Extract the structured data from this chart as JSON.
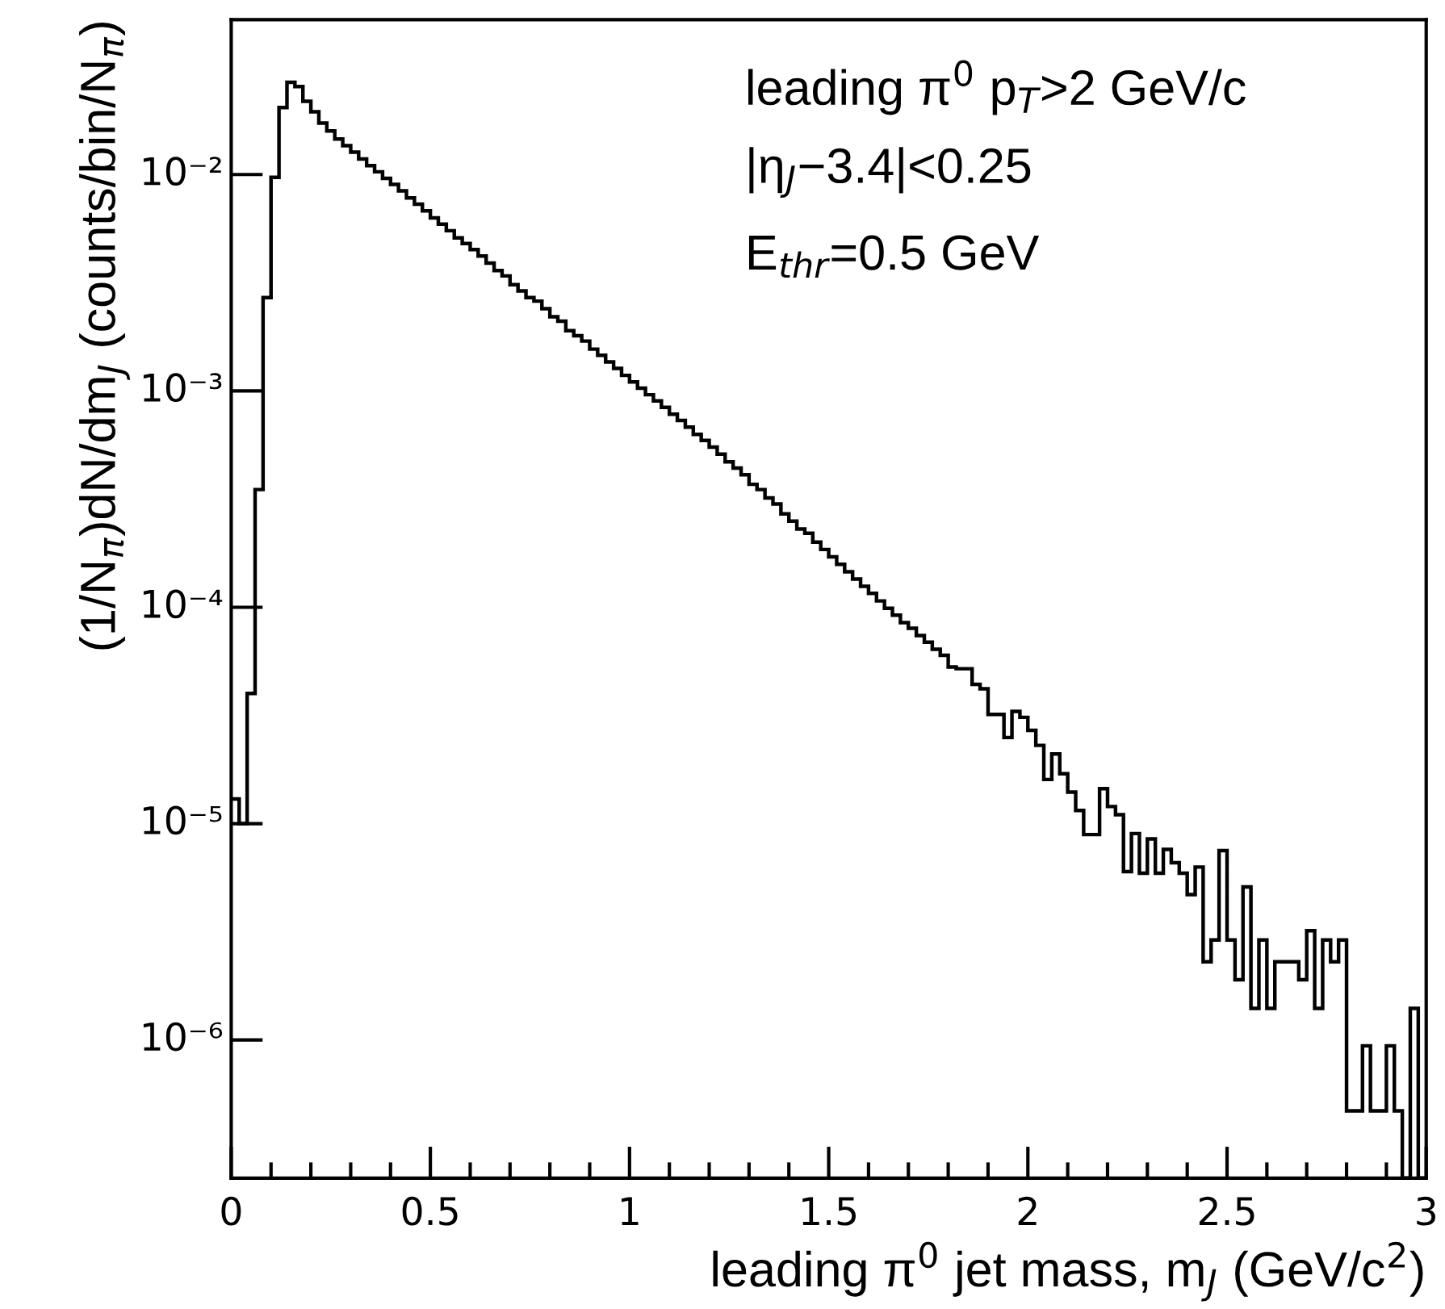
{
  "chart_data": {
    "type": "histogram",
    "xlabel": "leading π$^{0}$ jet mass, m$_{J}$ (GeV/c$^{2}$)",
    "ylabel": "(1/N$_{π}$)dN/dm$_{J}$ (counts/bin/N$_{π}$)",
    "annotations": [
      "leading π$^{0}$ p$_{T}$>2 GeV/c",
      "|η$_{J}$−3.4|<0.25",
      "E$_{thr}$=0.5 GeV"
    ],
    "color": "#000000",
    "log": "y",
    "xlim": [
      0,
      3
    ],
    "ylim": [
      2.3e-07,
      0.052
    ],
    "xticks": [
      0,
      0.5,
      1,
      1.5,
      2,
      2.5,
      3
    ],
    "yticks": [
      {
        "value": 1e-06,
        "label": "10⁻⁶"
      },
      {
        "value": 1e-05,
        "label": "10⁻⁵"
      },
      {
        "value": 0.0001,
        "label": "10⁻⁴"
      },
      {
        "value": 0.001,
        "label": "10⁻³"
      },
      {
        "value": 0.01,
        "label": "10⁻²"
      }
    ],
    "bins": [
      0,
      0.02,
      0.04,
      0.06,
      0.08,
      0.1,
      0.12,
      0.14,
      0.16,
      0.18,
      0.2,
      0.22,
      0.24,
      0.26,
      0.28,
      0.3,
      0.32,
      0.34,
      0.36,
      0.38,
      0.4,
      0.42,
      0.44,
      0.46,
      0.48,
      0.5,
      0.52,
      0.54,
      0.56,
      0.58,
      0.6,
      0.62,
      0.64,
      0.66,
      0.68,
      0.7,
      0.72,
      0.74,
      0.76,
      0.78,
      0.8,
      0.82,
      0.84,
      0.86,
      0.88,
      0.9,
      0.92,
      0.94,
      0.96,
      0.98,
      1,
      1.02,
      1.04,
      1.06,
      1.08,
      1.1,
      1.12,
      1.14,
      1.16,
      1.18,
      1.2,
      1.22,
      1.24,
      1.26,
      1.28,
      1.3,
      1.32,
      1.34,
      1.36,
      1.38,
      1.4,
      1.42,
      1.44,
      1.46,
      1.48,
      1.5,
      1.52,
      1.54,
      1.56,
      1.58,
      1.6,
      1.62,
      1.64,
      1.66,
      1.68,
      1.7,
      1.72,
      1.74,
      1.76,
      1.78,
      1.8,
      1.82,
      1.84,
      1.86,
      1.88,
      1.9,
      1.92,
      1.94,
      1.96,
      1.98,
      2,
      2.02,
      2.04,
      2.06,
      2.08,
      2.1,
      2.12,
      2.14,
      2.16,
      2.18,
      2.2,
      2.22,
      2.24,
      2.26,
      2.28,
      2.3,
      2.32,
      2.34,
      2.36,
      2.38,
      2.4,
      2.42,
      2.44,
      2.46,
      2.48,
      2.5,
      2.52,
      2.54,
      2.56,
      2.58,
      2.6,
      2.62,
      2.64,
      2.66,
      2.68,
      2.7,
      2.72,
      2.74,
      2.76,
      2.78,
      2.8,
      2.82,
      2.84,
      2.86,
      2.88,
      2.9,
      2.92,
      2.94,
      2.96,
      2.98,
      3
    ],
    "values": [
      1.3e-05,
      1e-05,
      4e-05,
      0.00035,
      0.0027,
      0.0097,
      0.0204,
      0.0267,
      0.0255,
      0.0218,
      0.0195,
      0.0173,
      0.0159,
      0.0146,
      0.0136,
      0.0127,
      0.0118,
      0.011,
      0.0103,
      0.0096,
      0.009,
      0.0084,
      0.0078,
      0.0073,
      0.0068,
      0.0063,
      0.0059,
      0.0055,
      0.0051,
      0.0048,
      0.0045,
      0.0042,
      0.0039,
      0.0036,
      0.0034,
      0.0031,
      0.0029,
      0.0027,
      0.0026,
      0.0024,
      0.0022,
      0.0021,
      0.0019,
      0.0018,
      0.0017,
      0.00156,
      0.00146,
      0.00136,
      0.00127,
      0.00118,
      0.0011,
      0.00103,
      0.00096,
      0.0009,
      0.00084,
      0.00078,
      0.00073,
      0.00068,
      0.00063,
      0.00059,
      0.00055,
      0.00051,
      0.00047,
      0.00044,
      0.00041,
      0.00037,
      0.00035,
      0.00032,
      0.0003,
      0.00027,
      0.00025,
      0.00023,
      0.00022,
      0.0002,
      0.000185,
      0.000171,
      0.000158,
      0.000146,
      0.000135,
      0.000125,
      0.000116,
      0.000107,
      9.9e-05,
      9.2e-05,
      8.5e-05,
      8e-05,
      7.4e-05,
      6.9e-05,
      6.4e-05,
      6e-05,
      5.3e-05,
      5.2e-05,
      5.2e-05,
      4.4e-05,
      4.2e-05,
      3.2e-05,
      3.2e-05,
      2.5e-05,
      3.3e-05,
      3.1e-05,
      2.7e-05,
      2.3e-05,
      1.6e-05,
      2.1e-05,
      1.7e-05,
      1.4e-05,
      1.15e-05,
      8.9e-06,
      8.9e-06,
      1.45e-05,
      1.2e-05,
      1.1e-05,
      6e-06,
      9e-06,
      5.9e-06,
      8.5e-06,
      5.9e-06,
      7.6e-06,
      6.6e-06,
      5.9e-06,
      4.7e-06,
      6.3e-06,
      2.3e-06,
      2.9e-06,
      7.5e-06,
      2.9e-06,
      1.9e-06,
      5.1e-06,
      1.4e-06,
      2.9e-06,
      1.4e-06,
      2.3e-06,
      2.3e-06,
      2.3e-06,
      1.9e-06,
      3.2e-06,
      1.4e-06,
      2.9e-06,
      2.3e-06,
      2.9e-06,
      4.7e-07,
      4.7e-07,
      9.4e-07,
      4.7e-07,
      4.7e-07,
      9.4e-07,
      4.7e-07,
      null,
      1.4e-06,
      null
    ]
  }
}
